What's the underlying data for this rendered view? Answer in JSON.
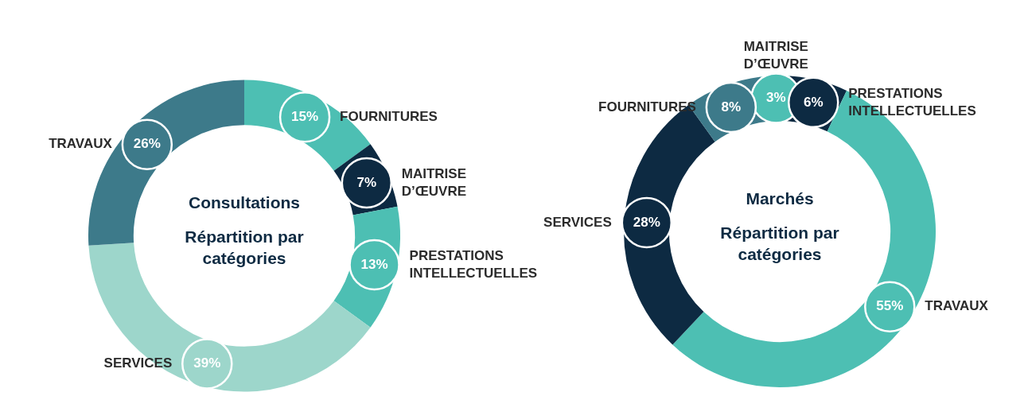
{
  "chart_data": [
    {
      "type": "donut",
      "title": "Consultations",
      "subtitle": "Répartition par catégories",
      "categories": [
        "FOURNITURES",
        "MAITRISE D’ŒUVRE",
        "PRESTATIONS INTELLECTUELLES",
        "SERVICES",
        "TRAVAUX"
      ],
      "values": [
        15,
        7,
        13,
        39,
        26
      ],
      "value_labels": [
        "15%",
        "7%",
        "13%",
        "39%",
        "26%"
      ],
      "colors": [
        "#4dbfb3",
        "#0d2a42",
        "#4dbfb3",
        "#9dd6cb",
        "#3d7a8a"
      ]
    },
    {
      "type": "donut",
      "title": "Marchés",
      "subtitle": "Répartition par catégories",
      "categories": [
        "MAITRISE D’ŒUVRE",
        "PRESTATIONS INTELLECTUELLES",
        "TRAVAUX",
        "SERVICES",
        "FOURNITURES"
      ],
      "values": [
        3,
        6,
        55,
        28,
        8
      ],
      "value_labels": [
        "3%",
        "6%",
        "55%",
        "28%",
        "8%"
      ],
      "colors": [
        "#4dbfb3",
        "#0d2a42",
        "#4dbfb3",
        "#0d2a42",
        "#3d7a8a"
      ]
    }
  ]
}
